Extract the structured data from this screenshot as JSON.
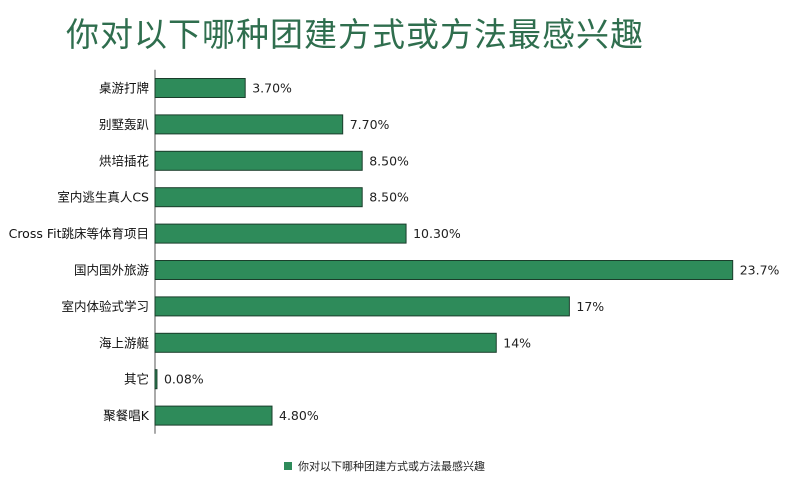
{
  "chart_data": {
    "type": "bar",
    "orientation": "horizontal",
    "title": "你对以下哪种团建方式或方法最感兴趣",
    "categories": [
      "桌游打牌",
      "别墅轰趴",
      "烘培插花",
      "室内逃生真人CS",
      "Cross Fit跳床等体育项目",
      "国内国外旅游",
      "室内体验式学习",
      "海上游艇",
      "其它",
      "聚餐唱K"
    ],
    "series": [
      {
        "name": "你对以下哪种团建方式或方法最感兴趣",
        "values": [
          3.7,
          7.7,
          8.5,
          8.5,
          10.3,
          23.7,
          17,
          14,
          0.08,
          4.8
        ],
        "labels": [
          "3.70%",
          "7.70%",
          "8.50%",
          "8.50%",
          "10.30%",
          "23.7%",
          "17%",
          "14%",
          "0.08%",
          "4.80%"
        ]
      }
    ],
    "xlim": [
      0,
      24
    ],
    "grid": false,
    "legend_position": "bottom",
    "bar_color": "#2e8b5a",
    "title_color": "#2f6e4e"
  }
}
